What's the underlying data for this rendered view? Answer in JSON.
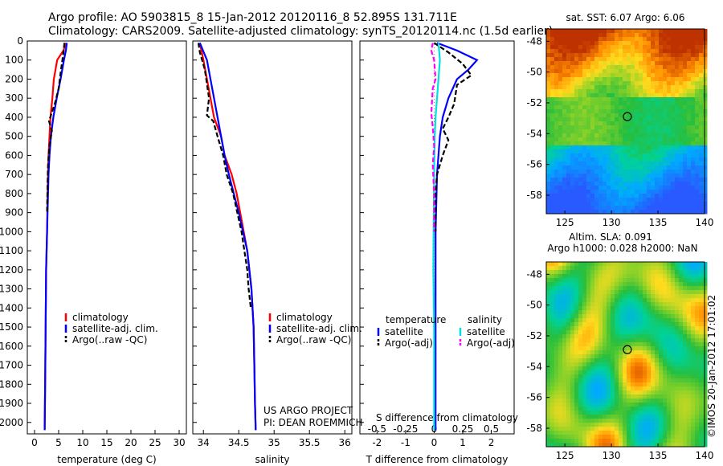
{
  "header": {
    "line1": "Argo profile: AO 5903815_8 15-Jan-2012 20120116_8 52.895S 131.711E",
    "line2": "Climatology: CARS2009. Satellite-adjusted climatology: synTS_20120114.nc (1.5d earlier)"
  },
  "credit": {
    "project": "US ARGO PROJECT",
    "pi": "PI: DEAN ROEMMICH",
    "imos": "©IMOS 20-Jan-2012 17:01:02"
  },
  "colors": {
    "climatology": "#ff0000",
    "satellite": "#0000ff",
    "argo": "#000000",
    "sal_satellite": "#00e0e0",
    "sal_argo": "#ff00ff"
  },
  "chart_data": [
    {
      "type": "line",
      "xlabel": "temperature (deg C)",
      "ylabel": "",
      "xlim": [
        -1.5,
        31.5
      ],
      "ylim": [
        2060,
        0
      ],
      "xticks": [
        0,
        5,
        10,
        15,
        20,
        25,
        30
      ],
      "yticks": [
        0,
        100,
        200,
        300,
        400,
        500,
        600,
        700,
        800,
        900,
        1000,
        1100,
        1200,
        1300,
        1400,
        1500,
        1600,
        1700,
        1800,
        1900,
        2000
      ],
      "legend": [
        "climatology",
        "satellite-adj. clim.",
        "Argo(..raw -QC)"
      ],
      "series": [
        {
          "name": "climatology",
          "points": [
            [
              6.5,
              10
            ],
            [
              6.0,
              50
            ],
            [
              4.7,
              100
            ],
            [
              4.0,
              200
            ],
            [
              3.7,
              300
            ],
            [
              3.3,
              400
            ],
            [
              3.1,
              500
            ],
            [
              2.9,
              600
            ],
            [
              2.8,
              700
            ],
            [
              2.7,
              800
            ],
            [
              2.6,
              1000
            ],
            [
              2.4,
              1200
            ],
            [
              2.3,
              1500
            ],
            [
              2.2,
              1800
            ],
            [
              2.1,
              2040
            ]
          ]
        },
        {
          "name": "satellite-adj. clim.",
          "points": [
            [
              6.7,
              10
            ],
            [
              6.5,
              50
            ],
            [
              6.1,
              100
            ],
            [
              5.4,
              200
            ],
            [
              4.6,
              300
            ],
            [
              3.9,
              400
            ],
            [
              3.4,
              500
            ],
            [
              3.1,
              600
            ],
            [
              2.9,
              700
            ],
            [
              2.8,
              800
            ],
            [
              2.6,
              1000
            ],
            [
              2.4,
              1200
            ],
            [
              2.3,
              1500
            ],
            [
              2.2,
              1800
            ],
            [
              2.1,
              2040
            ]
          ]
        },
        {
          "name": "Argo(..raw -QC)",
          "points": [
            [
              6.2,
              10
            ],
            [
              6.0,
              60
            ],
            [
              5.5,
              150
            ],
            [
              5.0,
              250
            ],
            [
              4.2,
              330
            ],
            [
              3.0,
              420
            ],
            [
              3.6,
              470
            ],
            [
              3.1,
              550
            ],
            [
              2.8,
              650
            ],
            [
              2.7,
              750
            ],
            [
              2.6,
              900
            ]
          ]
        }
      ]
    },
    {
      "type": "line",
      "xlabel": "salinity",
      "ylabel": "",
      "xlim": [
        33.85,
        36.1
      ],
      "ylim": [
        2060,
        0
      ],
      "xticks": [
        34,
        34.5,
        35,
        35.5,
        36
      ],
      "xticklabels": [
        "34",
        "34.5",
        "35",
        "35.5",
        "36"
      ],
      "legend": [
        "climatology",
        "satellite-adj. clim.",
        "Argo(..raw -QC)"
      ],
      "series": [
        {
          "name": "climatology",
          "points": [
            [
              33.95,
              10
            ],
            [
              34.0,
              100
            ],
            [
              34.05,
              200
            ],
            [
              34.1,
              300
            ],
            [
              34.15,
              400
            ],
            [
              34.25,
              500
            ],
            [
              34.3,
              600
            ],
            [
              34.4,
              700
            ],
            [
              34.47,
              800
            ],
            [
              34.52,
              900
            ],
            [
              34.57,
              1000
            ],
            [
              34.62,
              1100
            ],
            [
              34.65,
              1200
            ],
            [
              34.68,
              1300
            ],
            [
              34.71,
              1500
            ],
            [
              34.72,
              1700
            ],
            [
              34.73,
              1900
            ],
            [
              34.74,
              2040
            ]
          ]
        },
        {
          "name": "satellite-adj. clim.",
          "points": [
            [
              33.95,
              10
            ],
            [
              34.05,
              100
            ],
            [
              34.1,
              200
            ],
            [
              34.15,
              300
            ],
            [
              34.2,
              400
            ],
            [
              34.25,
              500
            ],
            [
              34.3,
              600
            ],
            [
              34.36,
              700
            ],
            [
              34.43,
              800
            ],
            [
              34.5,
              900
            ],
            [
              34.56,
              1000
            ],
            [
              34.62,
              1100
            ],
            [
              34.65,
              1200
            ],
            [
              34.68,
              1300
            ],
            [
              34.71,
              1500
            ],
            [
              34.72,
              1700
            ],
            [
              34.73,
              1900
            ],
            [
              34.74,
              2040
            ]
          ]
        },
        {
          "name": "Argo(..raw -QC)",
          "points": [
            [
              33.93,
              10
            ],
            [
              33.95,
              60
            ],
            [
              34.02,
              150
            ],
            [
              34.08,
              300
            ],
            [
              34.05,
              390
            ],
            [
              34.14,
              420
            ],
            [
              34.2,
              500
            ],
            [
              34.28,
              600
            ],
            [
              34.33,
              700
            ],
            [
              34.42,
              800
            ],
            [
              34.48,
              900
            ],
            [
              34.54,
              1000
            ],
            [
              34.58,
              1100
            ],
            [
              34.62,
              1200
            ],
            [
              34.64,
              1300
            ],
            [
              34.67,
              1400
            ]
          ]
        }
      ]
    },
    {
      "type": "line",
      "xlabel": "T difference from climatology",
      "ylabel": "",
      "label_above": "S difference from climatology",
      "xlim": [
        -2.6,
        2.8
      ],
      "ylim": [
        2060,
        0
      ],
      "xticks": [
        -2,
        -1,
        0,
        1,
        2
      ],
      "xticklabels": [
        "-2",
        "-1",
        "0",
        "1",
        "2"
      ],
      "sticks": [
        -0.5,
        -0.25,
        0,
        0.25,
        0.5
      ],
      "sticklabels": [
        "-0.5",
        "-0.25",
        "0",
        "0.25",
        "0.5"
      ],
      "legend_titles": [
        "temperature",
        "salinity"
      ],
      "legend": [
        "satellite",
        "Argo(-adj)",
        "satellite",
        "Argo(-adj)"
      ],
      "series": [
        {
          "name": "satellite",
          "points": [
            [
              0.1,
              10
            ],
            [
              0.8,
              50
            ],
            [
              1.5,
              100
            ],
            [
              1.2,
              150
            ],
            [
              0.8,
              200
            ],
            [
              0.5,
              300
            ],
            [
              0.3,
              400
            ],
            [
              0.2,
              500
            ],
            [
              0.15,
              600
            ],
            [
              0.1,
              700
            ],
            [
              0.05,
              1000
            ],
            [
              0.05,
              1500
            ],
            [
              0.05,
              2040
            ]
          ]
        },
        {
          "name": "Argo(-adj)",
          "points": [
            [
              0.0,
              10
            ],
            [
              0.5,
              60
            ],
            [
              1.0,
              120
            ],
            [
              1.3,
              180
            ],
            [
              0.8,
              230
            ],
            [
              0.7,
              330
            ],
            [
              0.5,
              400
            ],
            [
              0.3,
              460
            ],
            [
              0.5,
              520
            ],
            [
              0.3,
              600
            ],
            [
              0.1,
              700
            ],
            [
              0.05,
              800
            ],
            [
              0.05,
              1000
            ]
          ]
        },
        {
          "name": "satellite",
          "points": [
            [
              0.15,
              10
            ],
            [
              0.2,
              100
            ],
            [
              0.15,
              200
            ],
            [
              0.1,
              300
            ],
            [
              0.05,
              400
            ],
            [
              0.02,
              500
            ],
            [
              0.0,
              700
            ],
            [
              -0.02,
              1000
            ],
            [
              -0.03,
              1200
            ],
            [
              0.0,
              1500
            ],
            [
              0.0,
              2040
            ]
          ]
        },
        {
          "name": "Argo(-adj)",
          "points": [
            [
              -0.05,
              10
            ],
            [
              -0.1,
              50
            ],
            [
              0.0,
              100
            ],
            [
              0.05,
              200
            ],
            [
              -0.05,
              250
            ],
            [
              -0.1,
              380
            ],
            [
              -0.05,
              450
            ],
            [
              0.0,
              550
            ],
            [
              -0.05,
              650
            ],
            [
              0.0,
              800
            ],
            [
              0.0,
              1000
            ]
          ]
        }
      ]
    },
    {
      "type": "heatmap",
      "title": "sat. SST: 6.07 Argo: 6.06",
      "xlim": [
        123,
        140
      ],
      "ylim": [
        -59.2,
        -47.2
      ],
      "xticks": [
        125,
        130,
        135,
        140
      ],
      "yticks": [
        -48,
        -50,
        -52,
        -54,
        -56,
        -58
      ],
      "marker": [
        131.711,
        -52.895
      ]
    },
    {
      "type": "heatmap",
      "title": "Altim. SLA: 0.091",
      "title2": "Argo h1000: 0.028 h2000: NaN",
      "xlim": [
        123,
        140
      ],
      "ylim": [
        -59.2,
        -47.2
      ],
      "xticks": [
        125,
        130,
        135,
        140
      ],
      "yticks": [
        -48,
        -50,
        -52,
        -54,
        -56,
        -58
      ],
      "marker": [
        131.711,
        -52.895
      ]
    }
  ]
}
